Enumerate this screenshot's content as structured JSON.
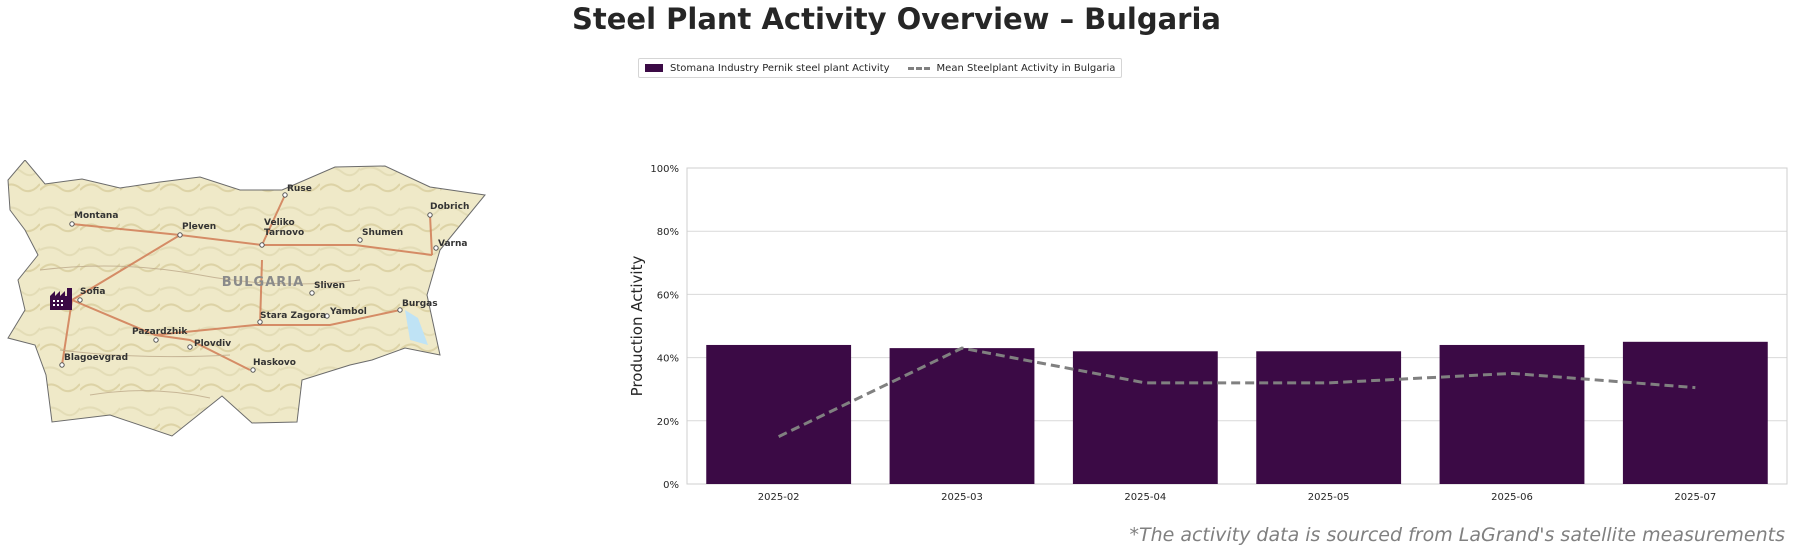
{
  "title": "Steel Plant Activity Overview – Bulgaria",
  "legend": {
    "bar_label": "Stomana Industry Pernik steel plant Activity",
    "line_label": "Mean Steelplant Activity in Bulgaria"
  },
  "map": {
    "country_label": "BULGARIA",
    "cities": [
      "Ruse",
      "Dobrich",
      "Montana",
      "Pleven",
      "Veliko Tarnovo",
      "Shumen",
      "Varna",
      "Sofia",
      "Sliven",
      "Yambol",
      "Burgas",
      "Stara Zagora",
      "Pazardzhik",
      "Plovdiv",
      "Blagoevgrad",
      "Haskovo"
    ],
    "plant_icon": "factory-icon"
  },
  "chart_data": {
    "type": "bar",
    "categories": [
      "2025-02",
      "2025-03",
      "2025-04",
      "2025-05",
      "2025-06",
      "2025-07"
    ],
    "series": [
      {
        "name": "Stomana Industry Pernik steel plant Activity",
        "type": "bar",
        "values": [
          44,
          43,
          42,
          42,
          44,
          45
        ],
        "color": "#3b0a45"
      },
      {
        "name": "Mean Steelplant Activity in Bulgaria",
        "type": "line",
        "style": "dashed",
        "values": [
          15,
          43,
          32,
          32,
          35,
          30.5
        ],
        "color": "#808080"
      }
    ],
    "ylabel": "Production Activity",
    "ylim": [
      0,
      100
    ],
    "yticks": [
      "0%",
      "20%",
      "40%",
      "60%",
      "80%",
      "100%"
    ],
    "grid": true
  },
  "footnote": "*The activity data is sourced from LaGrand's satellite measurements"
}
